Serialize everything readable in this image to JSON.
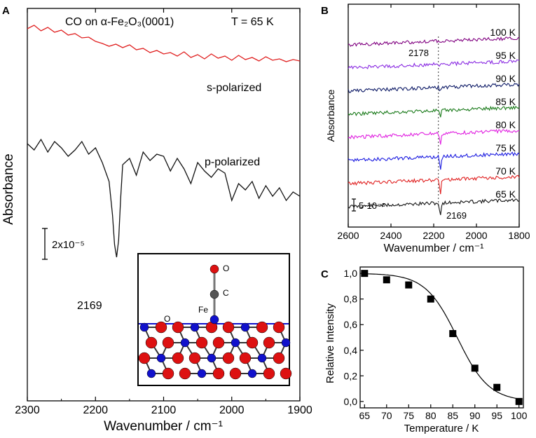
{
  "chart_data": [
    {
      "panel": "A",
      "type": "line",
      "title": "CO on α-Fe₂O₃(0001)",
      "temperature_label": "T = 65 K",
      "xlabel": "Wavenumber / cm⁻¹",
      "ylabel": "Absorbance",
      "xlim": [
        2300,
        1900
      ],
      "x_ticks": [
        2300,
        2200,
        2100,
        2000,
        1900
      ],
      "scale_bar_label": "2x10⁻⁵",
      "peak_label": "2169",
      "series": [
        {
          "name": "s-polarized",
          "color": "#e02020",
          "x": [
            2300,
            2290,
            2280,
            2270,
            2260,
            2250,
            2240,
            2230,
            2220,
            2210,
            2200,
            2190,
            2180,
            2170,
            2160,
            2150,
            2140,
            2130,
            2120,
            2110,
            2100,
            2090,
            2080,
            2070,
            2060,
            2050,
            2040,
            2030,
            2020,
            2010,
            2000,
            1990,
            1980,
            1970,
            1960,
            1950,
            1940,
            1930,
            1920,
            1910,
            1900
          ],
          "y": [
            22.0,
            24.5,
            20.5,
            23.0,
            19.5,
            21.0,
            17.5,
            18.5,
            15.5,
            16.0,
            13.0,
            11.5,
            9.5,
            11.0,
            8.5,
            10.5,
            7.0,
            8.0,
            5.0,
            6.5,
            4.0,
            5.0,
            2.5,
            5.5,
            1.5,
            3.5,
            0.5,
            4.0,
            1.0,
            2.5,
            -0.5,
            3.0,
            0.0,
            1.5,
            -1.0,
            2.0,
            -0.5,
            0.5,
            -1.5,
            0.0,
            -1.0
          ]
        },
        {
          "name": "p-polarized",
          "color": "#111111",
          "x": [
            2300,
            2290,
            2280,
            2270,
            2260,
            2250,
            2240,
            2230,
            2220,
            2210,
            2200,
            2190,
            2180,
            2175,
            2172,
            2169,
            2166,
            2163,
            2160,
            2150,
            2140,
            2130,
            2120,
            2110,
            2100,
            2090,
            2080,
            2070,
            2060,
            2050,
            2040,
            2030,
            2020,
            2010,
            2000,
            1990,
            1980,
            1970,
            1960,
            1950,
            1940,
            1930,
            1920,
            1910,
            1900
          ],
          "y": [
            0.0,
            -1.5,
            1.0,
            -2.0,
            0.5,
            -1.0,
            -3.0,
            -1.5,
            0.5,
            -2.5,
            -1.0,
            -4.5,
            -9.0,
            -17.0,
            -24.0,
            -27.0,
            -23.0,
            -13.0,
            -5.0,
            -3.5,
            -7.5,
            -2.0,
            -4.0,
            -2.5,
            -3.0,
            -6.5,
            -3.5,
            -6.0,
            -9.5,
            -4.5,
            -6.5,
            -8.0,
            -6.0,
            -7.0,
            -13.5,
            -9.5,
            -11.0,
            -9.0,
            -13.0,
            -10.0,
            -12.5,
            -10.5,
            -13.5,
            -11.5,
            -12.5
          ]
        }
      ],
      "inset": {
        "atom_labels": [
          "O",
          "C",
          "Fe",
          "O"
        ],
        "colors": {
          "oxygen": "#dd1111",
          "iron": "#1111cc",
          "carbon": "#555555"
        }
      }
    },
    {
      "panel": "B",
      "type": "line",
      "xlabel": "Wavenumber / cm⁻¹",
      "ylabel": "Absorbance",
      "xlim": [
        2600,
        1800
      ],
      "x_ticks": [
        2600,
        2400,
        2200,
        2000,
        1800
      ],
      "scale_bar_label": "5·10⁻⁵",
      "annotations": [
        "2178",
        "2169"
      ],
      "marker_line_x": 2178,
      "series": [
        {
          "name": "65 K",
          "color": "#111111",
          "peak_depth": 1.0
        },
        {
          "name": "70 K",
          "color": "#e02020",
          "peak_depth": 0.95
        },
        {
          "name": "75 K",
          "color": "#1a1ae0",
          "peak_depth": 0.9
        },
        {
          "name": "80 K",
          "color": "#e020e0",
          "peak_depth": 0.8
        },
        {
          "name": "85 K",
          "color": "#1a7a1a",
          "peak_depth": 0.53
        },
        {
          "name": "90 K",
          "color": "#0d1a66",
          "peak_depth": 0.26
        },
        {
          "name": "95 K",
          "color": "#8a2be2",
          "peak_depth": 0.11
        },
        {
          "name": "100 K",
          "color": "#800080",
          "peak_depth": 0.0
        }
      ]
    },
    {
      "panel": "C",
      "type": "scatter",
      "xlabel": "Temperature / K",
      "ylabel": "Relative Intensity",
      "xlim": [
        64,
        101
      ],
      "ylim": [
        -0.05,
        1.05
      ],
      "x_ticks": [
        65,
        70,
        75,
        80,
        85,
        90,
        95,
        100
      ],
      "y_ticks": [
        "0,0",
        "0,2",
        "0,4",
        "0,6",
        "0,8",
        "1,0"
      ],
      "x": [
        65,
        70,
        75,
        80,
        85,
        90,
        95,
        100
      ],
      "y": [
        1.0,
        0.95,
        0.91,
        0.8,
        0.53,
        0.26,
        0.11,
        0.0
      ],
      "fit": "sigmoid"
    }
  ],
  "panel_labels": [
    "A",
    "B",
    "C"
  ]
}
